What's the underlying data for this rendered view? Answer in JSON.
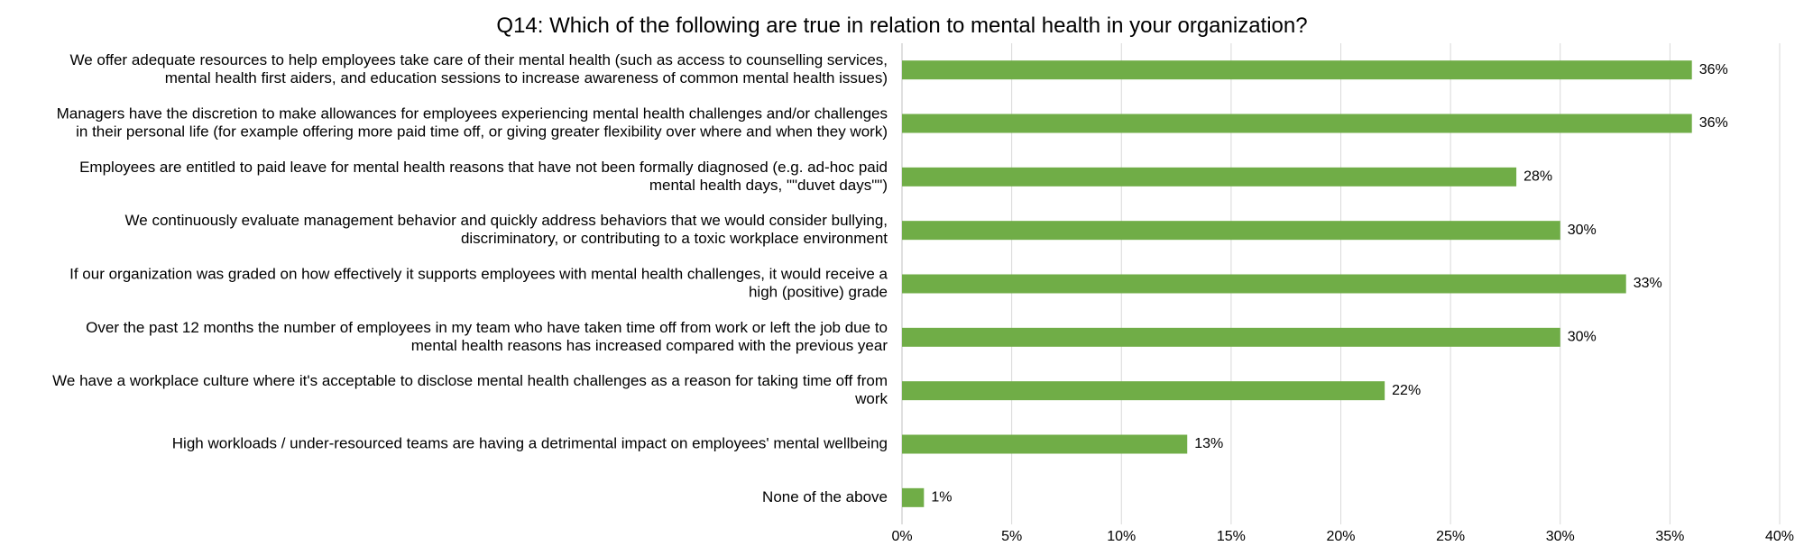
{
  "chart_data": {
    "type": "bar",
    "orientation": "horizontal",
    "title": "Q14: Which of the following are true in relation to mental health in your organization?",
    "xlabel": "",
    "ylabel": "",
    "xlim": [
      0,
      40
    ],
    "x_ticks": [
      0,
      5,
      10,
      15,
      20,
      25,
      30,
      35,
      40
    ],
    "x_tick_labels": [
      "0%",
      "5%",
      "10%",
      "15%",
      "20%",
      "25%",
      "30%",
      "35%",
      "40%"
    ],
    "grid": "vertical",
    "legend": "none",
    "bar_color": "#70ad47",
    "categories": [
      {
        "lines": [
          "We offer adequate resources to help employees take care of their mental health (such as access to counselling services,",
          "mental health first aiders, and education sessions to increase awareness of common mental health issues)"
        ]
      },
      {
        "lines": [
          "Managers have the discretion to make allowances for employees experiencing mental health challenges and/or challenges",
          "in their personal life (for example offering more paid time off, or giving greater flexibility over where and when they work)"
        ]
      },
      {
        "lines": [
          "Employees are entitled to paid leave for mental health reasons that have not been formally diagnosed (e.g. ad-hoc paid",
          "mental health days, \"\"duvet days\"\")"
        ]
      },
      {
        "lines": [
          "We continuously evaluate management behavior and quickly address behaviors that we would consider bullying,",
          "discriminatory, or contributing to a toxic workplace environment"
        ]
      },
      {
        "lines": [
          "If our organization was graded on how effectively it supports employees with mental health challenges, it would receive a",
          "high (positive) grade"
        ]
      },
      {
        "lines": [
          "Over the past 12 months the number of employees in my team who have taken time off from work or left the job due to",
          "mental health reasons has increased compared with the previous year"
        ]
      },
      {
        "lines": [
          "We have a workplace culture where it's acceptable to disclose mental health challenges as a reason for taking time off from",
          "work"
        ]
      },
      {
        "lines": [
          "High workloads / under-resourced teams are having a detrimental impact on employees' mental wellbeing"
        ]
      },
      {
        "lines": [
          "None of the above"
        ]
      }
    ],
    "values": [
      36,
      36,
      28,
      30,
      33,
      30,
      22,
      13,
      1
    ],
    "value_labels": [
      "36%",
      "36%",
      "28%",
      "30%",
      "33%",
      "30%",
      "22%",
      "13%",
      "1%"
    ]
  }
}
